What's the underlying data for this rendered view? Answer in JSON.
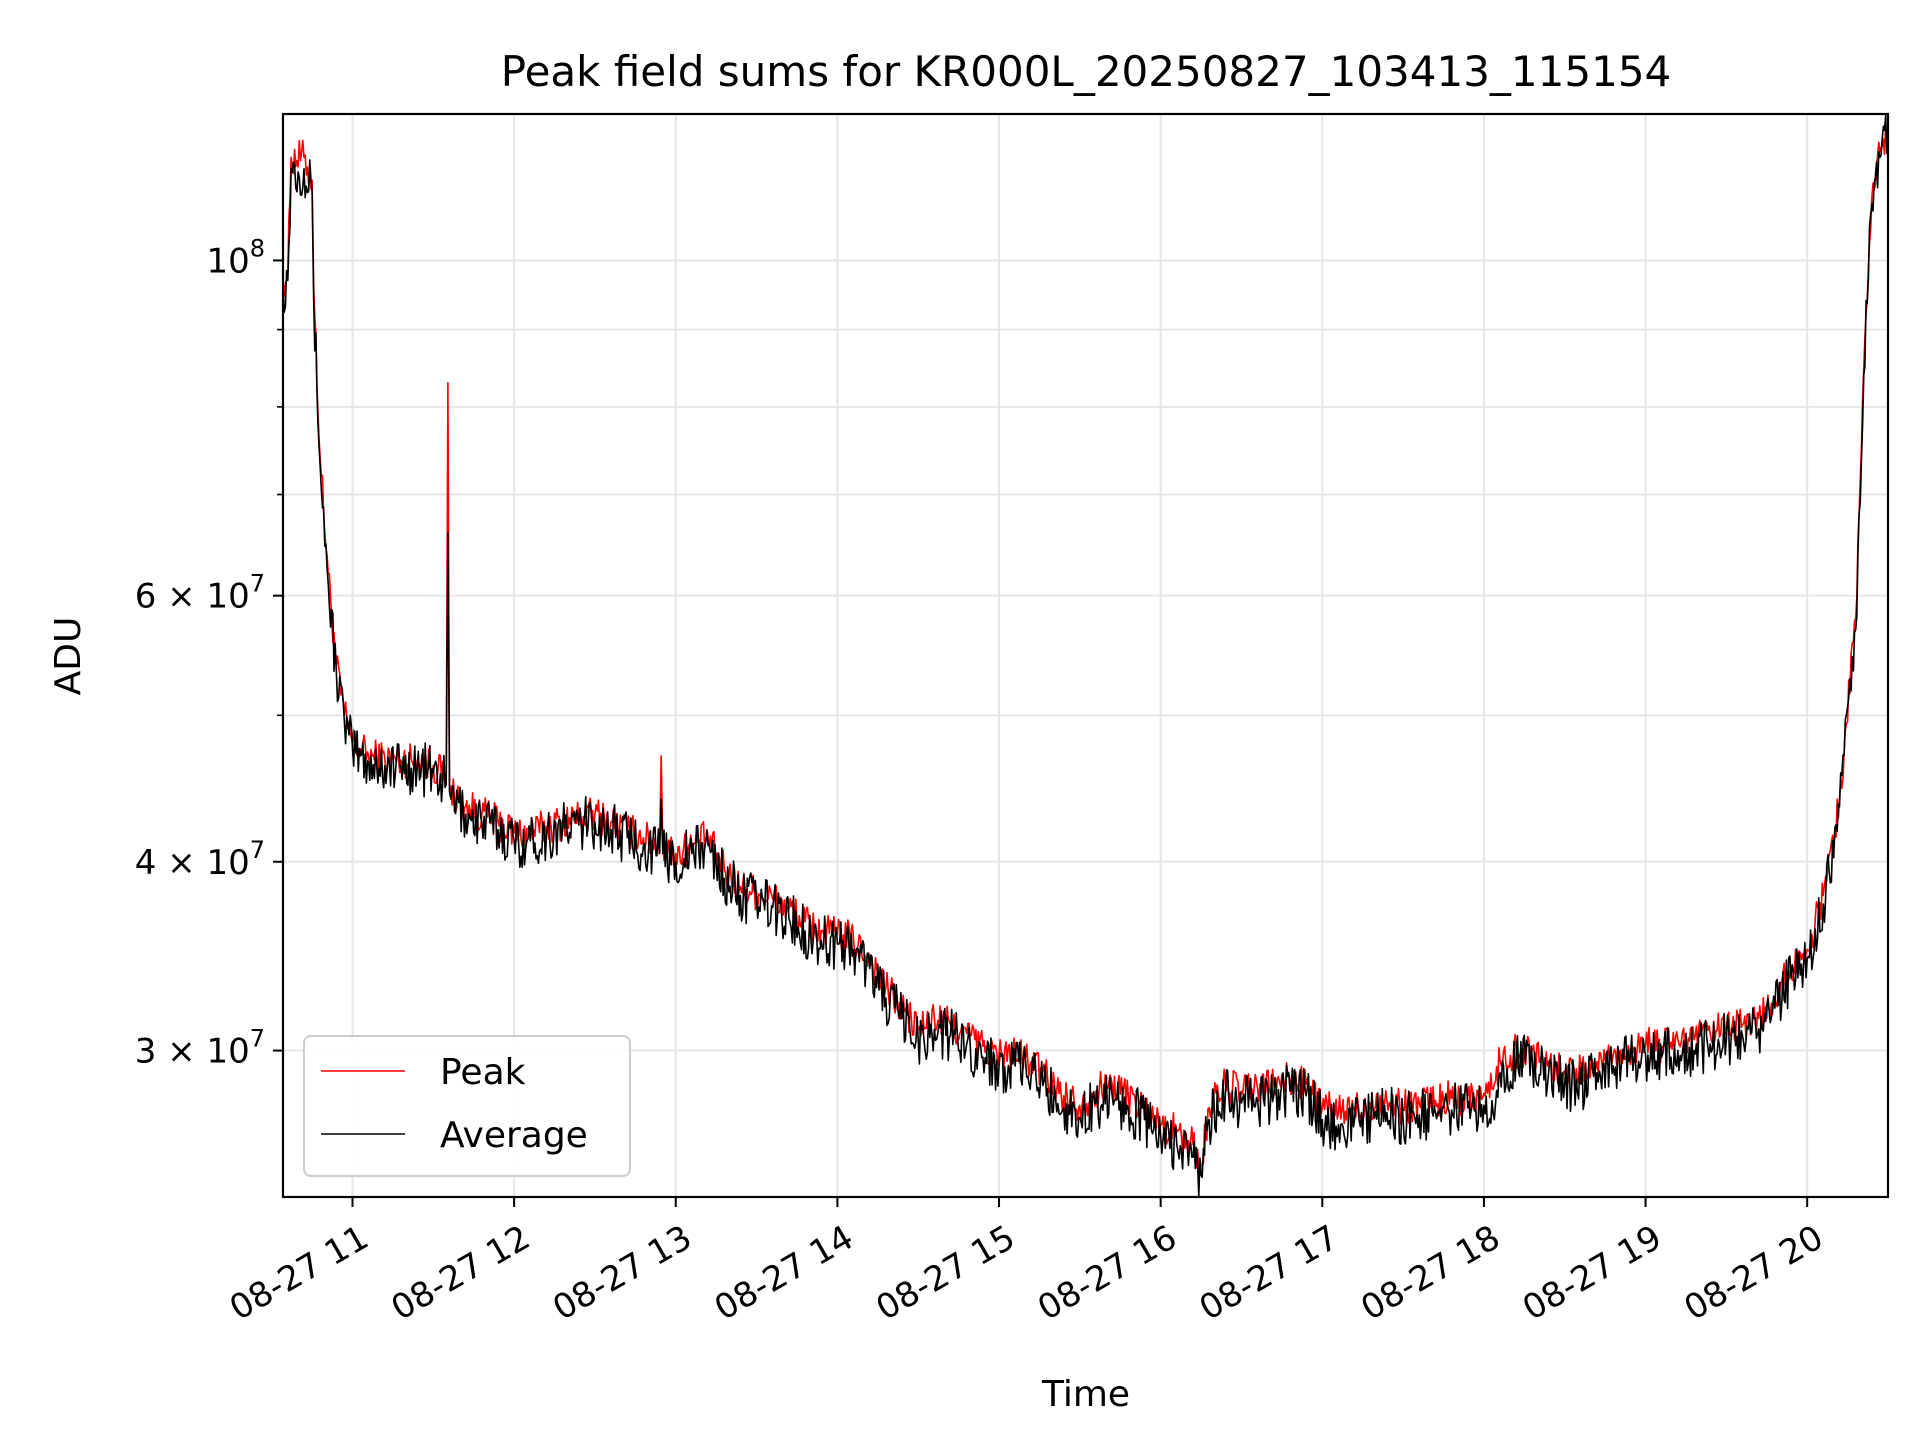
{
  "chart_data": {
    "type": "line",
    "title": "Peak field sums for KR000L_20250827_103413_115154",
    "xlabel": "Time",
    "ylabel": "ADU",
    "yscale": "log",
    "grid": true,
    "legend_position": "lower-left",
    "xlim": [
      10.57,
      20.5
    ],
    "ylim": [
      24000000,
      125000000
    ],
    "x_ticks": [
      {
        "value": 11,
        "label": "08-27 11"
      },
      {
        "value": 12,
        "label": "08-27 12"
      },
      {
        "value": 13,
        "label": "08-27 13"
      },
      {
        "value": 14,
        "label": "08-27 14"
      },
      {
        "value": 15,
        "label": "08-27 15"
      },
      {
        "value": 16,
        "label": "08-27 16"
      },
      {
        "value": 17,
        "label": "08-27 17"
      },
      {
        "value": 18,
        "label": "08-27 18"
      },
      {
        "value": 19,
        "label": "08-27 19"
      },
      {
        "value": 20,
        "label": "08-27 20"
      }
    ],
    "y_ticks": [
      {
        "value": 100000000,
        "base": "10",
        "exp": "8"
      },
      {
        "value": 60000000,
        "base": "6 × 10",
        "exp": "7"
      },
      {
        "value": 40000000,
        "base": "4 × 10",
        "exp": "7"
      },
      {
        "value": 30000000,
        "base": "3 × 10",
        "exp": "7"
      }
    ],
    "y_minor_ticks": [
      50000000,
      70000000,
      80000000,
      90000000
    ],
    "series": [
      {
        "name": "Peak",
        "color": "#ff0000",
        "noise": 0.012,
        "x": [
          10.57,
          10.6,
          10.62,
          10.7,
          10.75,
          10.76,
          10.8,
          10.85,
          10.9,
          10.95,
          11.0,
          11.05,
          11.1,
          11.2,
          11.3,
          11.4,
          11.5,
          11.58,
          11.59,
          11.6,
          11.61,
          11.7,
          11.8,
          11.9,
          12.0,
          12.1,
          12.2,
          12.3,
          12.4,
          12.5,
          12.6,
          12.7,
          12.8,
          12.9,
          12.91,
          12.92,
          13.0,
          13.1,
          13.2,
          13.3,
          13.4,
          13.5,
          13.6,
          13.7,
          13.8,
          13.9,
          14.0,
          14.1,
          14.2,
          14.3,
          14.4,
          14.5,
          14.6,
          14.7,
          14.8,
          14.9,
          15.0,
          15.1,
          15.2,
          15.3,
          15.4,
          15.5,
          15.6,
          15.7,
          15.8,
          15.9,
          16.0,
          16.1,
          16.2,
          16.25,
          16.3,
          16.4,
          16.5,
          16.6,
          16.7,
          16.8,
          16.9,
          17.0,
          17.1,
          17.2,
          17.3,
          17.4,
          17.5,
          17.6,
          17.7,
          17.8,
          17.9,
          18.0,
          18.05,
          18.1,
          18.2,
          18.3,
          18.4,
          18.5,
          18.6,
          18.7,
          18.8,
          18.9,
          19.0,
          19.1,
          19.2,
          19.3,
          19.4,
          19.5,
          19.6,
          19.7,
          19.8,
          19.9,
          20.0,
          20.1,
          20.2,
          20.3,
          20.35,
          20.4,
          20.45,
          20.5
        ],
        "y": [
          97000000,
          98000000,
          117000000,
          117000000,
          113000000,
          96000000,
          74000000,
          62000000,
          54000000,
          50000000,
          48000000,
          47500000,
          47000000,
          46800000,
          46700000,
          46700000,
          46300000,
          45500000,
          83000000,
          45000000,
          44500000,
          43500000,
          43000000,
          42500000,
          41800000,
          41800000,
          42200000,
          42500000,
          42800000,
          43000000,
          42500000,
          42000000,
          41500000,
          41000000,
          47000000,
          41000000,
          40500000,
          41000000,
          41500000,
          39500000,
          38500000,
          38200000,
          37800000,
          37200000,
          36500000,
          36000000,
          35800000,
          35500000,
          34500000,
          33000000,
          32000000,
          31000000,
          31500000,
          31200000,
          30800000,
          30200000,
          29800000,
          29800000,
          29500000,
          28800000,
          28000000,
          27600000,
          28200000,
          28500000,
          28000000,
          27500000,
          26800000,
          26500000,
          26000000,
          25200000,
          27500000,
          28500000,
          28200000,
          28300000,
          28500000,
          28700000,
          28500000,
          27500000,
          27300000,
          27500000,
          27600000,
          27800000,
          27500000,
          27700000,
          27800000,
          27900000,
          28000000,
          28100000,
          28300000,
          29500000,
          30000000,
          30000000,
          29500000,
          29000000,
          29000000,
          29500000,
          29800000,
          30000000,
          30300000,
          30200000,
          30500000,
          30500000,
          30800000,
          31000000,
          31200000,
          31500000,
          32500000,
          34000000,
          35000000,
          38000000,
          44000000,
          58000000,
          85000000,
          110000000,
          118000000,
          123000000
        ]
      },
      {
        "name": "Average",
        "color": "#000000",
        "noise": 0.018,
        "x": [
          10.57,
          10.6,
          10.62,
          10.7,
          10.75,
          10.76,
          10.8,
          10.85,
          10.9,
          10.95,
          11.0,
          11.05,
          11.1,
          11.2,
          11.3,
          11.4,
          11.5,
          11.58,
          11.59,
          11.6,
          11.61,
          11.7,
          11.8,
          11.9,
          12.0,
          12.1,
          12.2,
          12.3,
          12.4,
          12.5,
          12.6,
          12.7,
          12.8,
          12.9,
          12.91,
          12.92,
          13.0,
          13.1,
          13.2,
          13.3,
          13.4,
          13.5,
          13.6,
          13.7,
          13.8,
          13.9,
          14.0,
          14.1,
          14.2,
          14.3,
          14.4,
          14.5,
          14.6,
          14.7,
          14.8,
          14.9,
          15.0,
          15.1,
          15.2,
          15.3,
          15.4,
          15.5,
          15.6,
          15.7,
          15.8,
          15.9,
          16.0,
          16.1,
          16.2,
          16.25,
          16.3,
          16.4,
          16.5,
          16.6,
          16.7,
          16.8,
          16.9,
          17.0,
          17.1,
          17.2,
          17.3,
          17.4,
          17.5,
          17.6,
          17.7,
          17.8,
          17.9,
          18.0,
          18.05,
          18.1,
          18.2,
          18.3,
          18.4,
          18.5,
          18.6,
          18.7,
          18.8,
          18.9,
          19.0,
          19.1,
          19.2,
          19.3,
          19.4,
          19.5,
          19.6,
          19.7,
          19.8,
          19.9,
          20.0,
          20.1,
          20.2,
          20.3,
          20.35,
          20.4,
          20.45,
          20.5
        ],
        "y": [
          96000000,
          97000000,
          115000000,
          115000000,
          111000000,
          94000000,
          73000000,
          61000000,
          53500000,
          49500000,
          47500000,
          47000000,
          46500000,
          46300000,
          46200000,
          46200000,
          45800000,
          45000000,
          66000000,
          44500000,
          44000000,
          43000000,
          42500000,
          42000000,
          41300000,
          41300000,
          41700000,
          42000000,
          42300000,
          42500000,
          42000000,
          41500000,
          41000000,
          40500000,
          44000000,
          40500000,
          40000000,
          40500000,
          41000000,
          39000000,
          38000000,
          37700000,
          37300000,
          36700000,
          36000000,
          35500000,
          35300000,
          35000000,
          34000000,
          32500000,
          31500000,
          30500000,
          31000000,
          30700000,
          30300000,
          29700000,
          29300000,
          29300000,
          29000000,
          28300000,
          27500000,
          27100000,
          27700000,
          28000000,
          27500000,
          27000000,
          26300000,
          26000000,
          25500000,
          24800000,
          27000000,
          28000000,
          27700000,
          27800000,
          28000000,
          28200000,
          28000000,
          27000000,
          26800000,
          27000000,
          27100000,
          27300000,
          27000000,
          27200000,
          27300000,
          27400000,
          27500000,
          27600000,
          27800000,
          29000000,
          29500000,
          29500000,
          29000000,
          28500000,
          28500000,
          29000000,
          29300000,
          29500000,
          29800000,
          29700000,
          30000000,
          30000000,
          30300000,
          30500000,
          30700000,
          31000000,
          32000000,
          33500000,
          34500000,
          37500000,
          43500000,
          57000000,
          84000000,
          109000000,
          117000000,
          122000000
        ]
      }
    ]
  }
}
